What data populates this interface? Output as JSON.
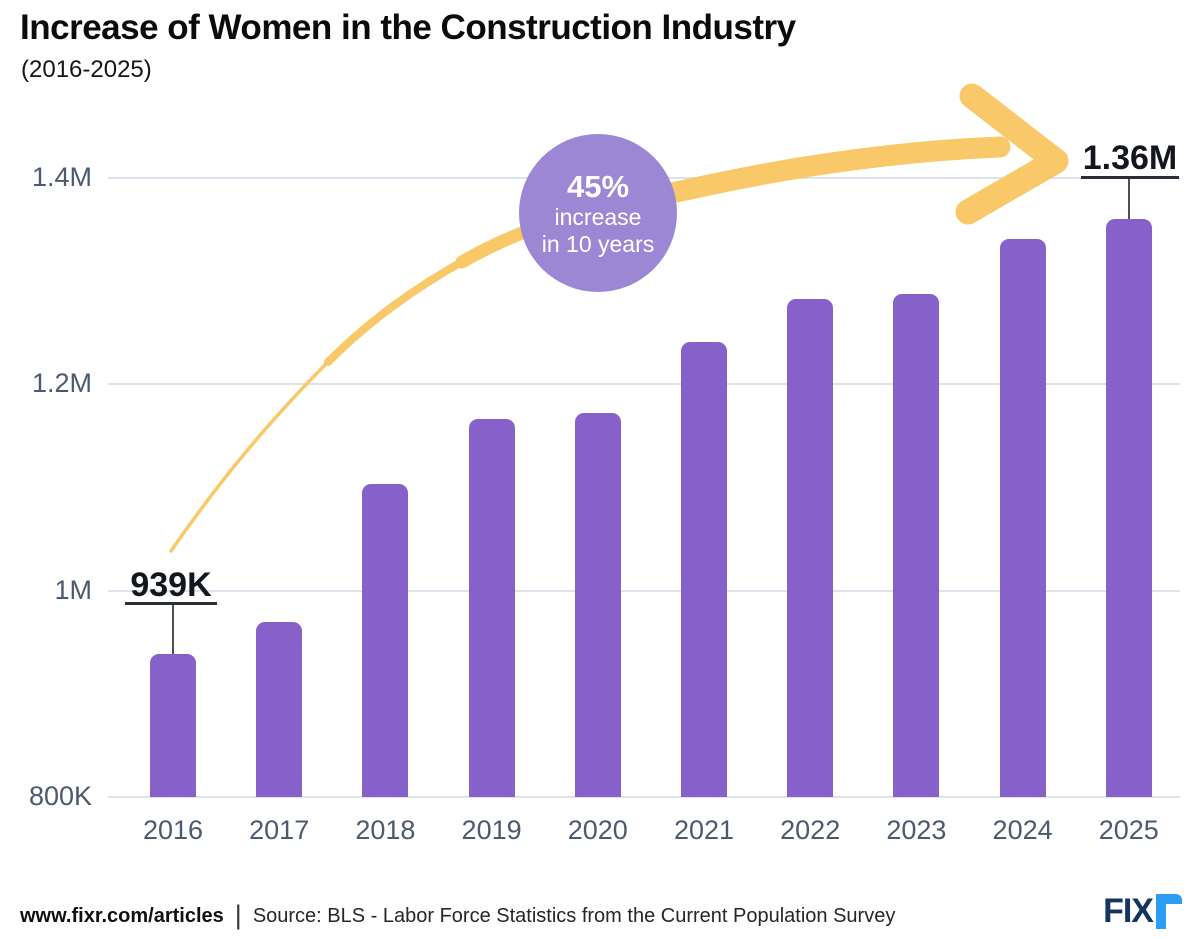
{
  "header": {
    "title": "Increase of Women in the Construction Industry",
    "subtitle": "(2016-2025)"
  },
  "chart_data": {
    "type": "bar",
    "title": "Increase of Women in the Construction Industry (2016-2025)",
    "categories": [
      "2016",
      "2017",
      "2018",
      "2019",
      "2020",
      "2021",
      "2022",
      "2023",
      "2024",
      "2025"
    ],
    "values": [
      939000,
      970000,
      1103000,
      1166000,
      1172000,
      1241000,
      1283000,
      1288000,
      1341000,
      1360000
    ],
    "xlabel": "",
    "ylabel": "",
    "ylim": [
      800000,
      1400000
    ],
    "y_ticks": [
      {
        "label": "1.4M",
        "value": 1400000
      },
      {
        "label": "1.2M",
        "value": 1200000
      },
      {
        "label": "1M",
        "value": 1000000
      },
      {
        "label": "800K",
        "value": 800000
      }
    ],
    "grid": true,
    "legend": "none",
    "bar_color": "#8561c9"
  },
  "annotations": {
    "first_bar_label": "939K",
    "last_bar_label": "1.36M",
    "badge": {
      "percent": "45%",
      "line1": "increase",
      "line2": "in 10 years",
      "color": "#9c87d5"
    },
    "arrow_color": "#f9c868"
  },
  "footer": {
    "site": "www.fixr.com/articles",
    "separator": "|",
    "source": "Source: BLS - Labor Force Statistics from the Current Population Survey",
    "logo": {
      "text_main": "FIX",
      "text_accent": "r",
      "main_color": "#14355f",
      "accent_color": "#2d9cf4"
    }
  }
}
